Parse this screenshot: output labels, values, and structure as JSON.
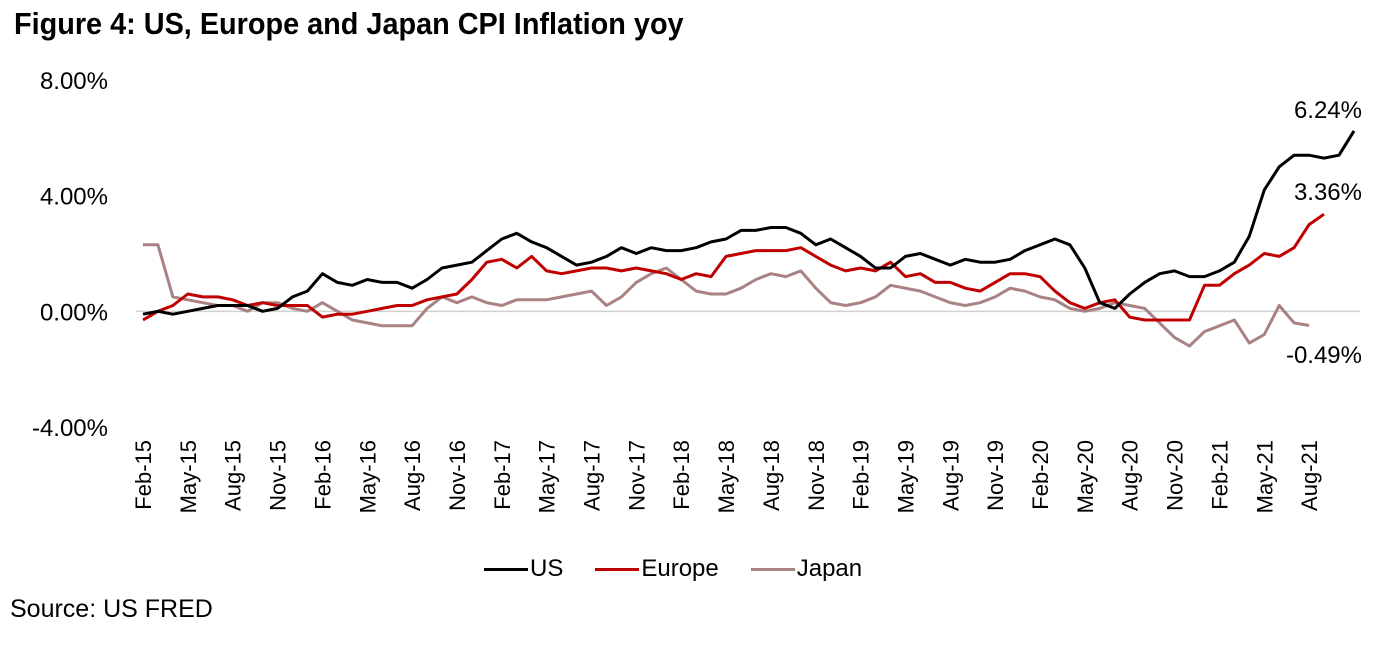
{
  "figure": {
    "title": "Figure 4: US, Europe and Japan CPI Inflation yoy",
    "source": "Source: US FRED"
  },
  "colors": {
    "US": "#000000",
    "Europe": "#c00000",
    "Japan": "#a98283",
    "zero_line": "#d0d0d0"
  },
  "chart_data": {
    "type": "line",
    "title": "Figure 4: US, Europe and Japan CPI Inflation yoy",
    "xlabel": "",
    "ylabel": "",
    "ylim": [
      -4,
      8
    ],
    "yticks": [
      8,
      4,
      0,
      -4
    ],
    "ytick_labels": [
      "8.00%",
      "4.00%",
      "0.00%",
      "-4.00%"
    ],
    "grid": false,
    "legend_position": "bottom-center",
    "x_start": "Feb-15",
    "x_tick_labels": [
      "Feb-15",
      "May-15",
      "Aug-15",
      "Nov-15",
      "Feb-16",
      "May-16",
      "Aug-16",
      "Nov-16",
      "Feb-17",
      "May-17",
      "Aug-17",
      "Nov-17",
      "Feb-18",
      "May-18",
      "Aug-18",
      "Nov-18",
      "Feb-19",
      "May-19",
      "Aug-19",
      "Nov-19",
      "Feb-20",
      "May-20",
      "Aug-20",
      "Nov-20",
      "Feb-21",
      "May-21",
      "Aug-21"
    ],
    "x_tick_every_months": 3,
    "series": [
      {
        "name": "US",
        "values": [
          -0.1,
          0.0,
          -0.1,
          0.0,
          0.1,
          0.2,
          0.2,
          0.2,
          0.0,
          0.1,
          0.5,
          0.7,
          1.3,
          1.0,
          0.9,
          1.1,
          1.0,
          1.0,
          0.8,
          1.1,
          1.5,
          1.6,
          1.7,
          2.1,
          2.5,
          2.7,
          2.4,
          2.2,
          1.9,
          1.6,
          1.7,
          1.9,
          2.2,
          2.0,
          2.2,
          2.1,
          2.1,
          2.2,
          2.4,
          2.5,
          2.8,
          2.8,
          2.9,
          2.9,
          2.7,
          2.3,
          2.5,
          2.2,
          1.9,
          1.5,
          1.5,
          1.9,
          2.0,
          1.8,
          1.6,
          1.8,
          1.7,
          1.7,
          1.8,
          2.1,
          2.3,
          2.5,
          2.3,
          1.5,
          0.3,
          0.1,
          0.6,
          1.0,
          1.3,
          1.4,
          1.2,
          1.2,
          1.4,
          1.7,
          2.6,
          4.2,
          5.0,
          5.4,
          5.4,
          5.3,
          5.4,
          6.24
        ],
        "end_label": "6.24%"
      },
      {
        "name": "Europe",
        "values": [
          -0.3,
          0.0,
          0.2,
          0.6,
          0.5,
          0.5,
          0.4,
          0.2,
          0.3,
          0.2,
          0.2,
          0.2,
          -0.2,
          -0.1,
          -0.1,
          0.0,
          0.1,
          0.2,
          0.2,
          0.4,
          0.5,
          0.6,
          1.1,
          1.7,
          1.8,
          1.5,
          1.9,
          1.4,
          1.3,
          1.4,
          1.5,
          1.5,
          1.4,
          1.5,
          1.4,
          1.3,
          1.1,
          1.3,
          1.2,
          1.9,
          2.0,
          2.1,
          2.1,
          2.1,
          2.2,
          1.9,
          1.6,
          1.4,
          1.5,
          1.4,
          1.7,
          1.2,
          1.3,
          1.0,
          1.0,
          0.8,
          0.7,
          1.0,
          1.3,
          1.3,
          1.2,
          0.7,
          0.3,
          0.1,
          0.3,
          0.4,
          -0.2,
          -0.3,
          -0.3,
          -0.3,
          -0.3,
          0.9,
          0.9,
          1.3,
          1.6,
          2.0,
          1.9,
          2.2,
          3.0,
          3.36
        ],
        "end_label": "3.36%"
      },
      {
        "name": "Japan",
        "values": [
          2.3,
          2.3,
          0.5,
          0.4,
          0.3,
          0.2,
          0.2,
          0.0,
          0.3,
          0.3,
          0.1,
          0.0,
          0.3,
          0.0,
          -0.3,
          -0.4,
          -0.5,
          -0.5,
          -0.5,
          0.1,
          0.5,
          0.3,
          0.5,
          0.3,
          0.2,
          0.4,
          0.4,
          0.4,
          0.5,
          0.6,
          0.7,
          0.2,
          0.5,
          1.0,
          1.3,
          1.5,
          1.1,
          0.7,
          0.6,
          0.6,
          0.8,
          1.1,
          1.3,
          1.2,
          1.4,
          0.8,
          0.3,
          0.2,
          0.3,
          0.5,
          0.9,
          0.8,
          0.7,
          0.5,
          0.3,
          0.2,
          0.3,
          0.5,
          0.8,
          0.7,
          0.5,
          0.4,
          0.1,
          0.0,
          0.1,
          0.3,
          0.2,
          0.1,
          -0.4,
          -0.9,
          -1.2,
          -0.7,
          -0.5,
          -0.3,
          -1.1,
          -0.8,
          0.2,
          -0.4,
          -0.49
        ],
        "end_label": "-0.49%"
      }
    ]
  },
  "legend": {
    "items": [
      {
        "label": "US"
      },
      {
        "label": "Europe"
      },
      {
        "label": "Japan"
      }
    ]
  }
}
